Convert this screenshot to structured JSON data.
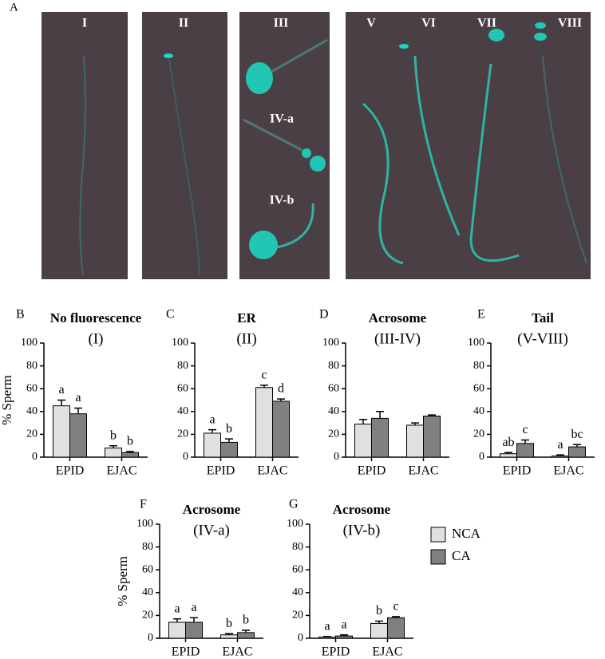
{
  "figure": {
    "panel_label": "A",
    "image_labels": [
      "I",
      "II",
      "III",
      "IV-a",
      "IV-b",
      "V",
      "VI",
      "VII",
      "VIII"
    ]
  },
  "legend": [
    {
      "name": "NCA",
      "color": "#e0e0e0"
    },
    {
      "name": "CA",
      "color": "#808080"
    }
  ],
  "chart_data": [
    {
      "type": "bar",
      "panel": "B",
      "title": "No fluorescence",
      "subtitle": "(I)",
      "ylabel": "% Sperm",
      "categories": [
        "EPID",
        "EJAC"
      ],
      "ylim": [
        0,
        100
      ],
      "yticks": [
        0,
        20,
        40,
        60,
        80,
        100
      ],
      "series": [
        {
          "color": "#e0e0e0",
          "values": [
            45,
            8
          ],
          "errors": [
            5,
            2
          ],
          "letters": [
            "a",
            "b"
          ]
        },
        {
          "color": "#808080",
          "values": [
            38,
            4
          ],
          "errors": [
            5,
            1
          ],
          "letters": [
            "a",
            "b"
          ]
        }
      ]
    },
    {
      "type": "bar",
      "panel": "C",
      "title": "ER",
      "subtitle": "(II)",
      "categories": [
        "EPID",
        "EJAC"
      ],
      "ylim": [
        0,
        100
      ],
      "yticks": [
        0,
        20,
        40,
        60,
        80,
        100
      ],
      "series": [
        {
          "color": "#e0e0e0",
          "values": [
            21,
            61
          ],
          "errors": [
            3,
            2
          ],
          "letters": [
            "a",
            "c"
          ]
        },
        {
          "color": "#808080",
          "values": [
            13,
            49
          ],
          "errors": [
            3,
            2
          ],
          "letters": [
            "b",
            "d"
          ]
        }
      ]
    },
    {
      "type": "bar",
      "panel": "D",
      "title": "Acrosome",
      "subtitle": "(III-IV)",
      "categories": [
        "EPID",
        "EJAC"
      ],
      "ylim": [
        0,
        100
      ],
      "yticks": [
        0,
        20,
        40,
        60,
        80,
        100
      ],
      "series": [
        {
          "color": "#e0e0e0",
          "values": [
            29,
            28
          ],
          "errors": [
            4,
            2
          ]
        },
        {
          "color": "#808080",
          "values": [
            34,
            36
          ],
          "errors": [
            6,
            1
          ]
        }
      ]
    },
    {
      "type": "bar",
      "panel": "E",
      "title": "Tail",
      "subtitle": "(V-VIII)",
      "categories": [
        "EPID",
        "EJAC"
      ],
      "ylim": [
        0,
        100
      ],
      "yticks": [
        0,
        20,
        40,
        60,
        80,
        100
      ],
      "series": [
        {
          "color": "#e0e0e0",
          "values": [
            3,
            1
          ],
          "errors": [
            1,
            1
          ],
          "letters": [
            "ab",
            "a"
          ]
        },
        {
          "color": "#808080",
          "values": [
            12,
            9
          ],
          "errors": [
            3,
            2
          ],
          "letters": [
            "c",
            "bc"
          ]
        }
      ]
    },
    {
      "type": "bar",
      "panel": "F",
      "title": "Acrosome",
      "subtitle": "(IV-a)",
      "ylabel": "% Sperm",
      "categories": [
        "EPID",
        "EJAC"
      ],
      "ylim": [
        0,
        100
      ],
      "yticks": [
        0,
        20,
        40,
        60,
        80,
        100
      ],
      "series": [
        {
          "color": "#e0e0e0",
          "values": [
            14,
            3
          ],
          "errors": [
            3,
            1
          ],
          "letters": [
            "a",
            "b"
          ]
        },
        {
          "color": "#808080",
          "values": [
            14,
            5
          ],
          "errors": [
            4,
            2
          ],
          "letters": [
            "a",
            "b"
          ]
        }
      ]
    },
    {
      "type": "bar",
      "panel": "G",
      "title": "Acrosome",
      "subtitle": "(IV-b)",
      "categories": [
        "EPID",
        "EJAC"
      ],
      "ylim": [
        0,
        100
      ],
      "yticks": [
        0,
        20,
        40,
        60,
        80,
        100
      ],
      "series": [
        {
          "color": "#e0e0e0",
          "values": [
            1,
            13
          ],
          "errors": [
            0.5,
            2
          ],
          "letters": [
            "a",
            "b"
          ]
        },
        {
          "color": "#808080",
          "values": [
            2,
            18
          ],
          "errors": [
            1,
            1
          ],
          "letters": [
            "a",
            "c"
          ]
        }
      ]
    }
  ]
}
